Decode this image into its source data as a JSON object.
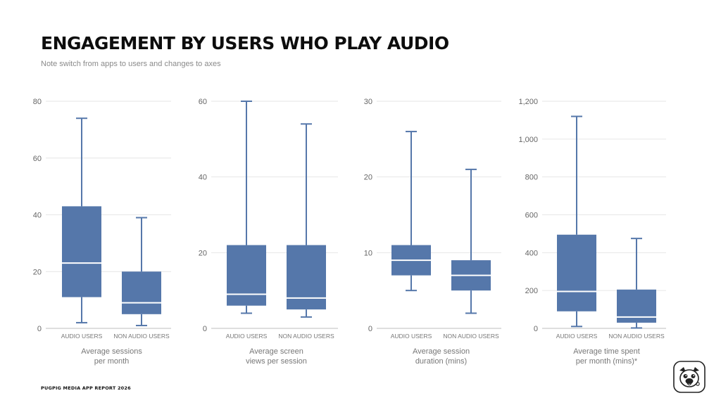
{
  "header": {
    "title": "ENGAGEMENT BY USERS WHO PLAY AUDIO",
    "subtitle": "Note switch from apps to users and changes to axes"
  },
  "footer": {
    "text": "PUGPIG MEDIA APP REPORT 2026"
  },
  "logo": {
    "icon": "pug-face-icon"
  },
  "colors": {
    "box": "#5577aa",
    "median": "#ffffff",
    "grid": "#e6e6e6",
    "axis": "#bdbdbd"
  },
  "chart_data": [
    {
      "type": "box",
      "categories": [
        "AUDIO USERS",
        "NON AUDIO USERS"
      ],
      "xlabel": [
        "Average sessions",
        "per month"
      ],
      "ylim": [
        0,
        80
      ],
      "yticks": [
        0,
        20,
        40,
        60,
        80
      ],
      "ytick_labels": [
        "0",
        "20",
        "40",
        "60",
        "80"
      ],
      "grid": true,
      "boxes": [
        {
          "min": 2,
          "q1": 11,
          "median": 23,
          "q3": 43,
          "max": 74
        },
        {
          "min": 1,
          "q1": 5,
          "median": 9,
          "q3": 20,
          "max": 39
        }
      ]
    },
    {
      "type": "box",
      "categories": [
        "AUDIO USERS",
        "NON AUDIO USERS"
      ],
      "xlabel": [
        "Average screen",
        "views per session"
      ],
      "ylim": [
        0,
        60
      ],
      "yticks": [
        0,
        20,
        40,
        60
      ],
      "ytick_labels": [
        "0",
        "20",
        "40",
        "60"
      ],
      "grid": true,
      "boxes": [
        {
          "min": 4,
          "q1": 6,
          "median": 9,
          "q3": 22,
          "max": 60
        },
        {
          "min": 3,
          "q1": 5,
          "median": 8,
          "q3": 22,
          "max": 54
        }
      ]
    },
    {
      "type": "box",
      "categories": [
        "AUDIO USERS",
        "NON AUDIO USERS"
      ],
      "xlabel": [
        "Average session",
        "duration (mins)"
      ],
      "ylim": [
        0,
        30
      ],
      "yticks": [
        0,
        10,
        20,
        30
      ],
      "ytick_labels": [
        "0",
        "10",
        "20",
        "30"
      ],
      "grid": true,
      "boxes": [
        {
          "min": 5,
          "q1": 7,
          "median": 9,
          "q3": 11,
          "max": 26
        },
        {
          "min": 2,
          "q1": 5,
          "median": 7,
          "q3": 9,
          "max": 21
        }
      ]
    },
    {
      "type": "box",
      "categories": [
        "AUDIO USERS",
        "NON AUDIO USERS"
      ],
      "xlabel": [
        "Average time spent",
        "per month (mins)*"
      ],
      "ylim": [
        0,
        1200
      ],
      "yticks": [
        0,
        200,
        400,
        600,
        800,
        1000,
        1200
      ],
      "ytick_labels": [
        "0",
        "200",
        "400",
        "600",
        "800",
        "1,000",
        "1,200"
      ],
      "grid": true,
      "boxes": [
        {
          "min": 10,
          "q1": 90,
          "median": 195,
          "q3": 495,
          "max": 1120
        },
        {
          "min": 2,
          "q1": 30,
          "median": 60,
          "q3": 205,
          "max": 475
        }
      ]
    }
  ]
}
